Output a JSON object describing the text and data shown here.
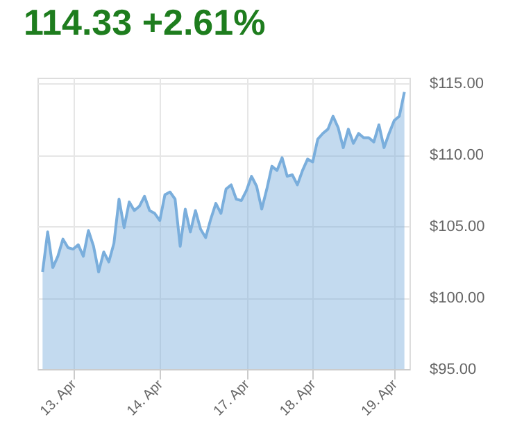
{
  "chart_data": {
    "type": "area",
    "title": "114.33 +2.61%",
    "categories": [
      null,
      null,
      null,
      null,
      null,
      null,
      "13. Apr",
      null,
      null,
      null,
      null,
      null,
      null,
      null,
      null,
      null,
      null,
      null,
      null,
      null,
      null,
      null,
      null,
      "14. Apr",
      null,
      null,
      null,
      null,
      null,
      null,
      null,
      null,
      null,
      null,
      null,
      null,
      null,
      null,
      null,
      null,
      "17. Apr",
      null,
      null,
      null,
      null,
      null,
      null,
      null,
      null,
      null,
      null,
      null,
      null,
      "18. Apr",
      null,
      null,
      null,
      null,
      null,
      null,
      null,
      null,
      null,
      null,
      null,
      null,
      null,
      null,
      null,
      "19. Apr",
      null,
      null
    ],
    "series": [
      {
        "color": "#7aaedc",
        "values": [
          101.8,
          104.6,
          102.1,
          102.9,
          104.1,
          103.5,
          103.4,
          103.7,
          102.9,
          104.7,
          103.6,
          101.8,
          103.2,
          102.5,
          103.8,
          106.9,
          104.9,
          106.7,
          106.1,
          106.4,
          107.1,
          106.1,
          105.9,
          105.4,
          107.2,
          107.4,
          106.9,
          103.6,
          106.2,
          104.6,
          106.1,
          104.8,
          104.2,
          105.5,
          106.6,
          105.9,
          107.6,
          107.9,
          106.9,
          106.8,
          107.5,
          108.5,
          107.8,
          106.2,
          107.6,
          109.2,
          108.9,
          109.8,
          108.5,
          108.6,
          107.9,
          108.9,
          109.7,
          109.5,
          111.1,
          111.5,
          111.8,
          112.7,
          111.9,
          110.5,
          111.8,
          110.8,
          111.5,
          111.2,
          111.2,
          110.9,
          112.1,
          110.5,
          111.5,
          112.4,
          112.7,
          114.4
        ]
      }
    ],
    "ylim": [
      95,
      115.4
    ],
    "yticks": [
      {
        "value": 95,
        "label": "$95.00"
      },
      {
        "value": 100,
        "label": "$100.00"
      },
      {
        "value": 105,
        "label": "$105.00"
      },
      {
        "value": 110,
        "label": "$110.00"
      },
      {
        "value": 115,
        "label": "$115.00"
      }
    ],
    "grid": true
  }
}
